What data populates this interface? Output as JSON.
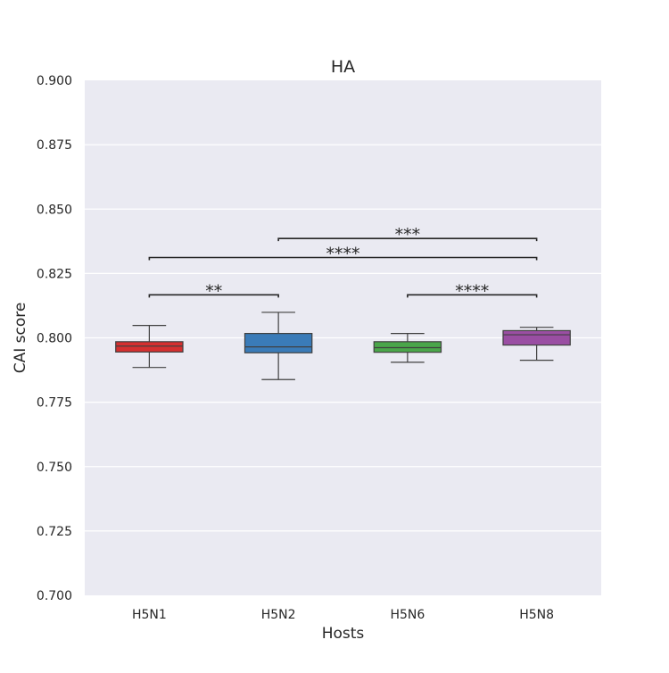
{
  "chart_data": {
    "type": "box",
    "title": "HA",
    "xlabel": "Hosts",
    "ylabel": "CAI score",
    "ylim": [
      0.7,
      0.9
    ],
    "yticks": [
      "0.700",
      "0.725",
      "0.750",
      "0.775",
      "0.800",
      "0.825",
      "0.850",
      "0.875",
      "0.900"
    ],
    "grid": true,
    "categories": [
      "H5N1",
      "H5N2",
      "H5N6",
      "H5N8"
    ],
    "boxes": [
      {
        "category": "H5N1",
        "color": "#d62f2f",
        "whisker_low": 0.7885,
        "q1": 0.7945,
        "median": 0.7968,
        "q3": 0.7985,
        "whisker_high": 0.8048
      },
      {
        "category": "H5N2",
        "color": "#3a7bb8",
        "whisker_low": 0.7838,
        "q1": 0.7942,
        "median": 0.7965,
        "q3": 0.8017,
        "whisker_high": 0.8099
      },
      {
        "category": "H5N6",
        "color": "#4aa64a",
        "whisker_low": 0.7905,
        "q1": 0.7944,
        "median": 0.7962,
        "q3": 0.7985,
        "whisker_high": 0.8017
      },
      {
        "category": "H5N8",
        "color": "#9a4ea3",
        "whisker_low": 0.7913,
        "q1": 0.7972,
        "median": 0.8012,
        "q3": 0.8028,
        "whisker_high": 0.8041
      }
    ],
    "annotations": [
      {
        "from": "H5N1",
        "to": "H5N2",
        "y": 0.8167,
        "label": "**"
      },
      {
        "from": "H5N6",
        "to": "H5N8",
        "y": 0.8167,
        "label": "****"
      },
      {
        "from": "H5N1",
        "to": "H5N8",
        "y": 0.8312,
        "label": "****"
      },
      {
        "from": "H5N2",
        "to": "H5N8",
        "y": 0.8386,
        "label": "***"
      }
    ]
  }
}
